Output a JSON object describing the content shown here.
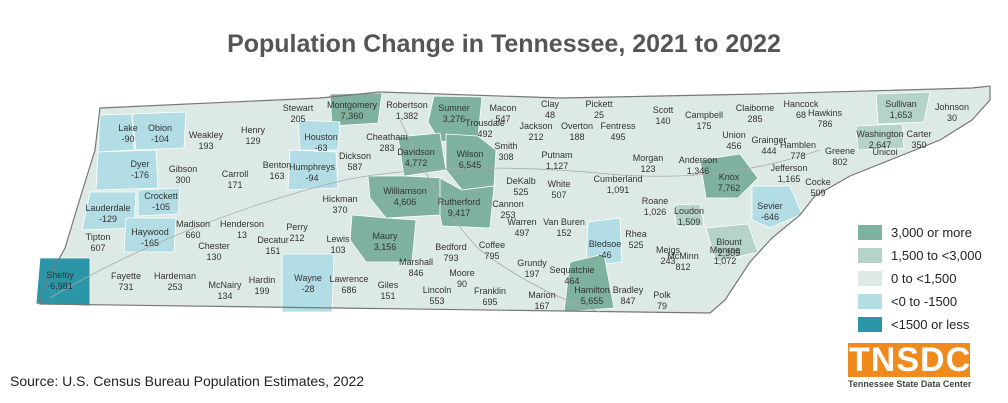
{
  "title": "Population Change in Tennessee, 2021 to 2022",
  "source": "Source:  U.S. Census Bureau Population Estimates, 2022",
  "logo": {
    "text": "TNSDC",
    "tagline": "Tennessee State Data Center"
  },
  "colors": {
    "cat1": "#7fb19f",
    "cat2": "#b6d3c7",
    "cat3": "#dde9e4",
    "cat4": "#b2dde5",
    "cat5": "#2a96a8",
    "border": "#ffffff",
    "outline": "#777777",
    "road": "#aaaaaa",
    "logo": "#f08a1c"
  },
  "legend": [
    {
      "label": "3,000 or more",
      "color": "#7fb19f"
    },
    {
      "label": "1,500 to <3,000",
      "color": "#b6d3c7"
    },
    {
      "label": "0 to <1,500",
      "color": "#dde9e4"
    },
    {
      "label": "<0 to -1500",
      "color": "#b2dde5"
    },
    {
      "label": "<1500 or less",
      "color": "#2a96a8"
    }
  ],
  "counties": [
    {
      "name": "Lake",
      "value": "-90",
      "cat": 4
    },
    {
      "name": "Obion",
      "value": "-104",
      "cat": 4
    },
    {
      "name": "Weakley",
      "value": "193",
      "cat": 3
    },
    {
      "name": "Henry",
      "value": "129",
      "cat": 3
    },
    {
      "name": "Stewart",
      "value": "205",
      "cat": 3
    },
    {
      "name": "Montgomery",
      "value": "7,360",
      "cat": 1
    },
    {
      "name": "Robertson",
      "value": "1,382",
      "cat": 3
    },
    {
      "name": "Sumner",
      "value": "3,276",
      "cat": 1
    },
    {
      "name": "Macon",
      "value": "547",
      "cat": 3
    },
    {
      "name": "Clay",
      "value": "48",
      "cat": 3
    },
    {
      "name": "Pickett",
      "value": "25",
      "cat": 3
    },
    {
      "name": "Scott",
      "value": "140",
      "cat": 3
    },
    {
      "name": "Campbell",
      "value": "175",
      "cat": 3
    },
    {
      "name": "Claiborne",
      "value": "285",
      "cat": 3
    },
    {
      "name": "Hancock",
      "value": "68",
      "cat": 3
    },
    {
      "name": "Hawkins",
      "value": "786",
      "cat": 3
    },
    {
      "name": "Sullivan",
      "value": "1,653",
      "cat": 2
    },
    {
      "name": "Johnson",
      "value": "30",
      "cat": 3
    },
    {
      "name": "Washington",
      "value": "2,647",
      "cat": 2
    },
    {
      "name": "Carter",
      "value": "350",
      "cat": 3
    },
    {
      "name": "Unicoi",
      "value": "",
      "cat": 3
    },
    {
      "name": "Dyer",
      "value": "-176",
      "cat": 4
    },
    {
      "name": "Gibson",
      "value": "300",
      "cat": 3
    },
    {
      "name": "Carroll",
      "value": "171",
      "cat": 3
    },
    {
      "name": "Benton",
      "value": "163",
      "cat": 3
    },
    {
      "name": "Houston",
      "value": "-63",
      "cat": 4
    },
    {
      "name": "Humphreys",
      "value": "-94",
      "cat": 4
    },
    {
      "name": "Dickson",
      "value": "587",
      "cat": 3
    },
    {
      "name": "Cheatham",
      "value": "283",
      "cat": 3
    },
    {
      "name": "Davidson",
      "value": "4,772",
      "cat": 1
    },
    {
      "name": "Wilson",
      "value": "6,545",
      "cat": 1
    },
    {
      "name": "Trousdale",
      "value": "492",
      "cat": 3
    },
    {
      "name": "Smith",
      "value": "308",
      "cat": 3
    },
    {
      "name": "Jackson",
      "value": "212",
      "cat": 3
    },
    {
      "name": "Overton",
      "value": "188",
      "cat": 3
    },
    {
      "name": "Fentress",
      "value": "495",
      "cat": 3
    },
    {
      "name": "Putnam",
      "value": "1,127",
      "cat": 3
    },
    {
      "name": "Morgan",
      "value": "123",
      "cat": 3
    },
    {
      "name": "Anderson",
      "value": "1,346",
      "cat": 3
    },
    {
      "name": "Union",
      "value": "456",
      "cat": 3
    },
    {
      "name": "Grainger",
      "value": "444",
      "cat": 3
    },
    {
      "name": "Hamblen",
      "value": "778",
      "cat": 3
    },
    {
      "name": "Greene",
      "value": "802",
      "cat": 3
    },
    {
      "name": "Knox",
      "value": "7,762",
      "cat": 1
    },
    {
      "name": "Jefferson",
      "value": "1,165",
      "cat": 3
    },
    {
      "name": "Cocke",
      "value": "509",
      "cat": 3
    },
    {
      "name": "Sevier",
      "value": "-646",
      "cat": 4
    },
    {
      "name": "Lauderdale",
      "value": "-129",
      "cat": 4
    },
    {
      "name": "Crockett",
      "value": "-105",
      "cat": 4
    },
    {
      "name": "Tipton",
      "value": "607",
      "cat": 3
    },
    {
      "name": "Haywood",
      "value": "-165",
      "cat": 4
    },
    {
      "name": "Madison",
      "value": "660",
      "cat": 3
    },
    {
      "name": "Henderson",
      "value": "13",
      "cat": 3
    },
    {
      "name": "Decatur",
      "value": "151",
      "cat": 3
    },
    {
      "name": "Perry",
      "value": "212",
      "cat": 3
    },
    {
      "name": "Hickman",
      "value": "370",
      "cat": 3
    },
    {
      "name": "Williamson",
      "value": "4,606",
      "cat": 1
    },
    {
      "name": "Rutherford",
      "value": "9,417",
      "cat": 1
    },
    {
      "name": "Cannon",
      "value": "253",
      "cat": 3
    },
    {
      "name": "DeKalb",
      "value": "525",
      "cat": 3
    },
    {
      "name": "White",
      "value": "507",
      "cat": 3
    },
    {
      "name": "Cumberland",
      "value": "1,091",
      "cat": 3
    },
    {
      "name": "Roane",
      "value": "1,026",
      "cat": 3
    },
    {
      "name": "Loudon",
      "value": "1,509",
      "cat": 2
    },
    {
      "name": "Blount",
      "value": "2,309",
      "cat": 2
    },
    {
      "name": "Warren",
      "value": "497",
      "cat": 3
    },
    {
      "name": "Van Buren",
      "value": "152",
      "cat": 3
    },
    {
      "name": "Bledsoe",
      "value": "-46",
      "cat": 4
    },
    {
      "name": "Rhea",
      "value": "525",
      "cat": 3
    },
    {
      "name": "Meigs",
      "value": "243",
      "cat": 3
    },
    {
      "name": "McMinn",
      "value": "812",
      "cat": 3
    },
    {
      "name": "Monroe",
      "value": "1,072",
      "cat": 3
    },
    {
      "name": "Shelby",
      "value": "-6,981",
      "cat": 5
    },
    {
      "name": "Fayette",
      "value": "731",
      "cat": 3
    },
    {
      "name": "Hardeman",
      "value": "253",
      "cat": 3
    },
    {
      "name": "Chester",
      "value": "130",
      "cat": 3
    },
    {
      "name": "McNairy",
      "value": "134",
      "cat": 3
    },
    {
      "name": "Hardin",
      "value": "199",
      "cat": 3
    },
    {
      "name": "Wayne",
      "value": "-28",
      "cat": 4
    },
    {
      "name": "Lewis",
      "value": "103",
      "cat": 3
    },
    {
      "name": "Lawrence",
      "value": "686",
      "cat": 3
    },
    {
      "name": "Maury",
      "value": "3,156",
      "cat": 1
    },
    {
      "name": "Marshall",
      "value": "846",
      "cat": 3
    },
    {
      "name": "Giles",
      "value": "151",
      "cat": 3
    },
    {
      "name": "Bedford",
      "value": "793",
      "cat": 3
    },
    {
      "name": "Lincoln",
      "value": "553",
      "cat": 3
    },
    {
      "name": "Moore",
      "value": "90",
      "cat": 3
    },
    {
      "name": "Coffee",
      "value": "795",
      "cat": 3
    },
    {
      "name": "Franklin",
      "value": "695",
      "cat": 3
    },
    {
      "name": "Grundy",
      "value": "197",
      "cat": 3
    },
    {
      "name": "Marion",
      "value": "167",
      "cat": 3
    },
    {
      "name": "Sequatchie",
      "value": "464",
      "cat": 3
    },
    {
      "name": "Hamilton",
      "value": "5,655",
      "cat": 1
    },
    {
      "name": "Bradley",
      "value": "847",
      "cat": 3
    },
    {
      "name": "Polk",
      "value": "79",
      "cat": 3
    }
  ]
}
